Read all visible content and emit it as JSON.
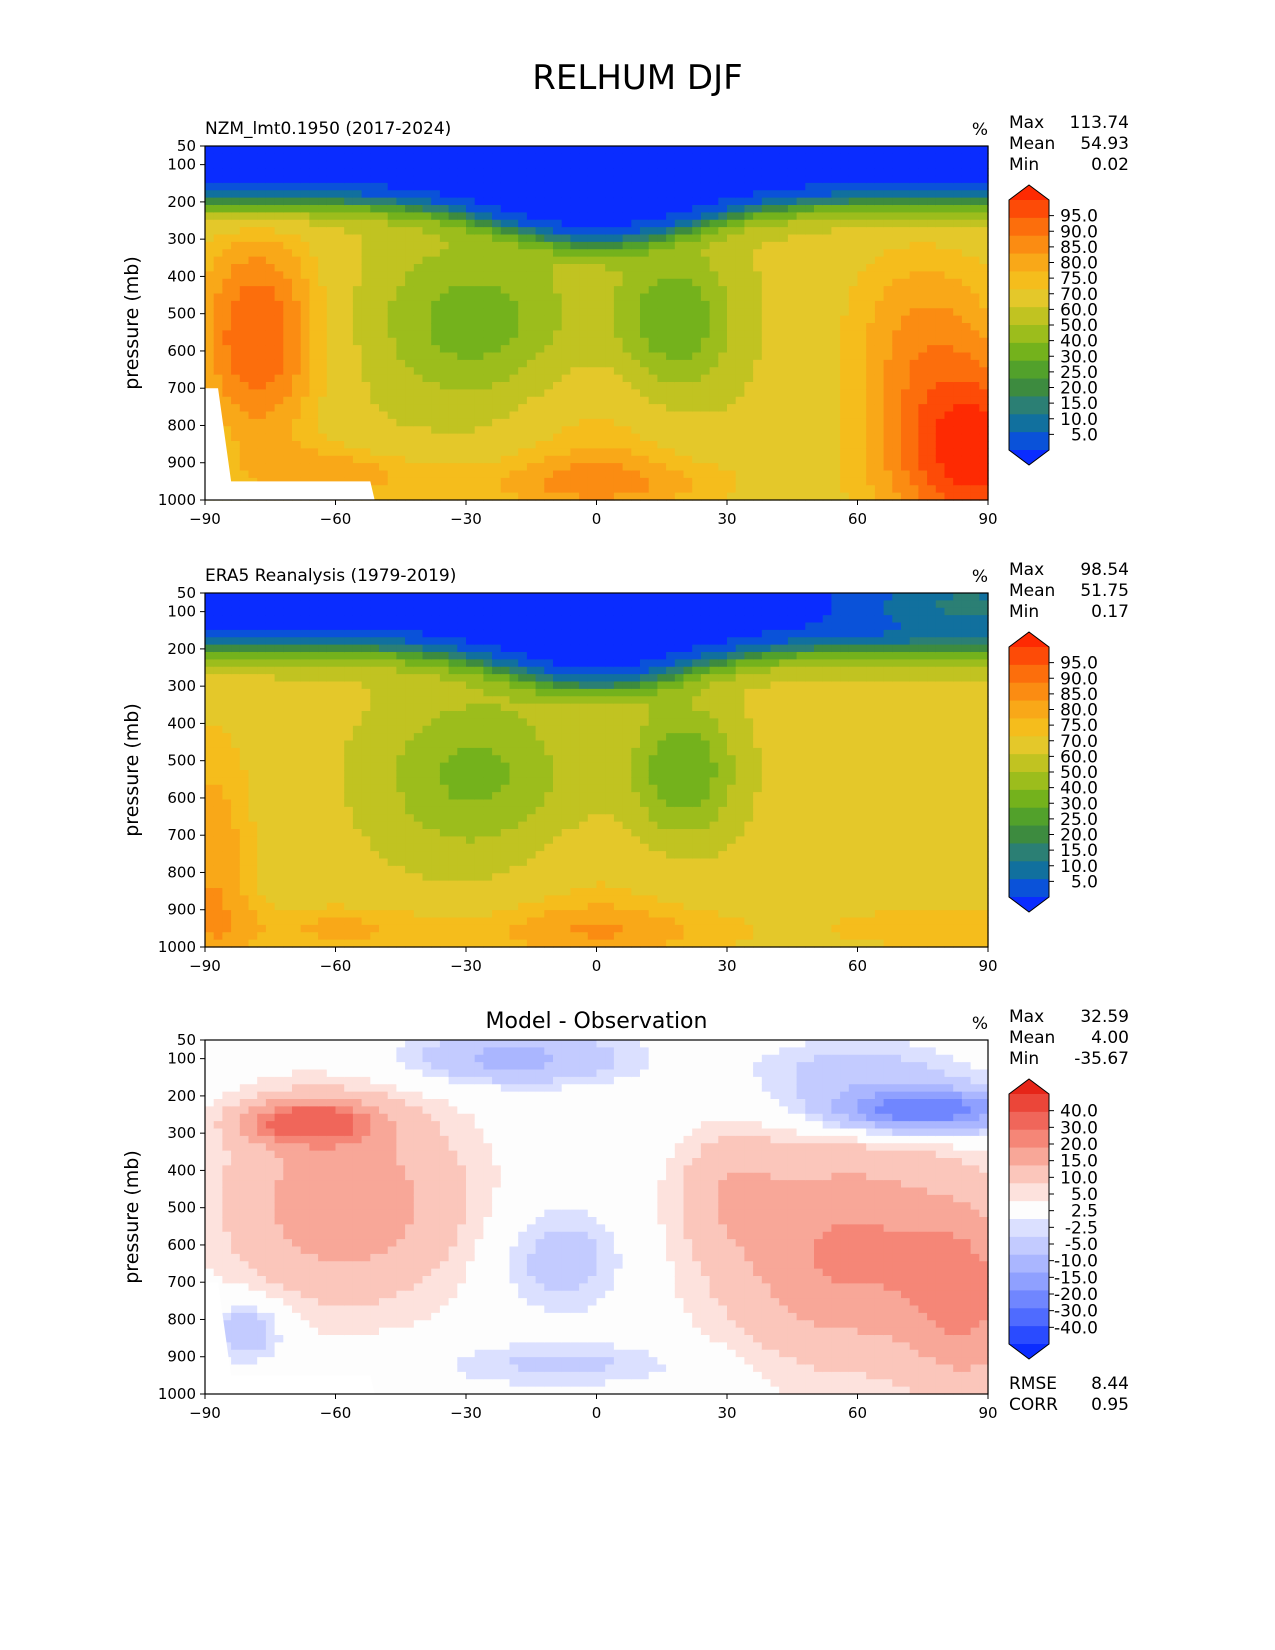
{
  "figure": {
    "title": "RELHUM DJF"
  },
  "colors": {
    "abs_levels": [
      "#0a2cff",
      "#0a52d9",
      "#11709e",
      "#2b7f74",
      "#3d8b3f",
      "#52a12b",
      "#74b21c",
      "#9cbd1c",
      "#c1c321",
      "#e4c82a",
      "#f5bd1c",
      "#f9a818",
      "#fb8c12",
      "#fc6e0c",
      "#fd4b07",
      "#fe2a02"
    ],
    "diff_levels": [
      "#0b2cff",
      "#2a4bff",
      "#4f6bff",
      "#7086ff",
      "#8fa0ff",
      "#aab6ff",
      "#c3cbff",
      "#dbe0ff",
      "#fdfdfd",
      "#fde2dd",
      "#fbc6bb",
      "#f8a798",
      "#f58677",
      "#f0665a",
      "#eb4639",
      "#e62518"
    ],
    "axis": "#000000"
  },
  "chart_data": [
    {
      "type": "contour",
      "panel_title": "NZM_lmt0.1950 (2017-2024)",
      "units": "%",
      "stats": [
        {
          "label": "Max",
          "value": "113.74"
        },
        {
          "label": "Mean",
          "value": "54.93"
        },
        {
          "label": "Min",
          "value": "0.02"
        }
      ],
      "xlabel": "",
      "ylabel": "pressure (mb)",
      "xlim": [
        -90,
        90
      ],
      "ylim": [
        1000,
        50
      ],
      "xticks": [
        "−90",
        "−60",
        "−30",
        "0",
        "30",
        "60",
        "90"
      ],
      "yticks": [
        "50",
        "100",
        "200",
        "300",
        "400",
        "500",
        "600",
        "700",
        "800",
        "900",
        "1000"
      ],
      "colorbar_levels": [
        "95.0",
        "90.0",
        "85.0",
        "80.0",
        "75.0",
        "70.0",
        "60.0",
        "50.0",
        "40.0",
        "30.0",
        "25.0",
        "20.0",
        "15.0",
        "10.0",
        "5.0"
      ]
    },
    {
      "type": "contour",
      "panel_title": "ERA5 Reanalysis (1979-2019)",
      "units": "%",
      "stats": [
        {
          "label": "Max",
          "value": "98.54"
        },
        {
          "label": "Mean",
          "value": "51.75"
        },
        {
          "label": "Min",
          "value": "0.17"
        }
      ],
      "xlabel": "",
      "ylabel": "pressure (mb)",
      "xlim": [
        -90,
        90
      ],
      "ylim": [
        1000,
        50
      ],
      "xticks": [
        "−90",
        "−60",
        "−30",
        "0",
        "30",
        "60",
        "90"
      ],
      "yticks": [
        "50",
        "100",
        "200",
        "300",
        "400",
        "500",
        "600",
        "700",
        "800",
        "900",
        "1000"
      ],
      "colorbar_levels": [
        "95.0",
        "90.0",
        "85.0",
        "80.0",
        "75.0",
        "70.0",
        "60.0",
        "50.0",
        "40.0",
        "30.0",
        "25.0",
        "20.0",
        "15.0",
        "10.0",
        "5.0"
      ]
    },
    {
      "type": "contour",
      "panel_title": "Model - Observation",
      "units": "%",
      "stats": [
        {
          "label": "Max",
          "value": "32.59"
        },
        {
          "label": "Mean",
          "value": "4.00"
        },
        {
          "label": "Min",
          "value": "-35.67"
        }
      ],
      "extra_stats": [
        {
          "label": "RMSE",
          "value": "8.44"
        },
        {
          "label": "CORR",
          "value": "0.95"
        }
      ],
      "xlabel": "",
      "ylabel": "pressure (mb)",
      "xlim": [
        -90,
        90
      ],
      "ylim": [
        1000,
        50
      ],
      "xticks": [
        "−90",
        "−60",
        "−30",
        "0",
        "30",
        "60",
        "90"
      ],
      "yticks": [
        "50",
        "100",
        "200",
        "300",
        "400",
        "500",
        "600",
        "700",
        "800",
        "900",
        "1000"
      ],
      "colorbar_levels": [
        "40.0",
        "30.0",
        "20.0",
        "15.0",
        "10.0",
        "5.0",
        "2.5",
        "-2.5",
        "-5.0",
        "-10.0",
        "-15.0",
        "-20.0",
        "-30.0",
        "-40.0"
      ]
    }
  ]
}
